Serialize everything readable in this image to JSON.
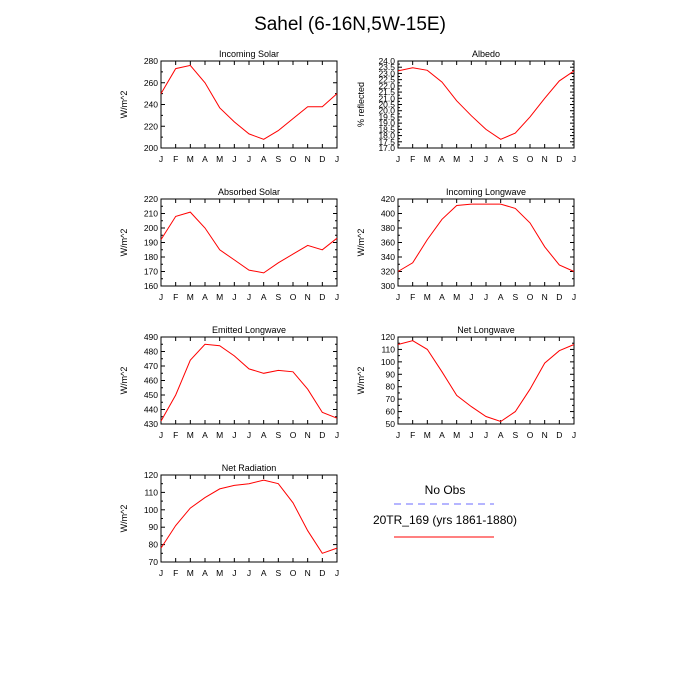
{
  "title": "Sahel (6-16N,5W-15E)",
  "months": [
    "J",
    "F",
    "M",
    "A",
    "M",
    "J",
    "J",
    "A",
    "S",
    "O",
    "N",
    "D",
    "J"
  ],
  "colors": {
    "model": "#ff0000",
    "obs": "#6b6bff",
    "axis": "#000000"
  },
  "legend": {
    "obs_label": "No Obs",
    "model_label": "20TR_169 (yrs 1861-1880)"
  },
  "chart_data": [
    {
      "type": "line",
      "title": "Incoming Solar",
      "ylabel": "W/m^2",
      "ylim": [
        200,
        280
      ],
      "yticks": [
        200,
        220,
        240,
        260,
        280
      ],
      "ytick_labels": [
        "200",
        "220",
        "240",
        "260",
        "280"
      ],
      "series": [
        {
          "name": "20TR_169 (yrs 1861-1880)",
          "values": [
            250,
            273,
            276,
            260,
            237,
            224,
            213,
            208,
            216,
            227,
            238,
            238,
            250
          ]
        }
      ]
    },
    {
      "type": "line",
      "title": "Albedo",
      "ylabel": "% reflected",
      "ylim": [
        17,
        24
      ],
      "yticks": [
        17,
        18,
        19,
        20,
        21,
        22,
        23,
        24
      ],
      "ytick_labels": [
        "17.0",
        "17.5",
        "18.0",
        "18.5",
        "19.0",
        "19.5",
        "20.0",
        "20.5",
        "21.0",
        "21.5",
        "22.0",
        "22.5",
        "23.0",
        "23.5",
        "24.0"
      ],
      "ytick_values": [
        17.0,
        17.5,
        18.0,
        18.5,
        19.0,
        19.5,
        20.0,
        20.5,
        21.0,
        21.5,
        22.0,
        22.5,
        23.0,
        23.5,
        24.0
      ],
      "series": [
        {
          "name": "20TR_169 (yrs 1861-1880)",
          "values": [
            23.2,
            23.45,
            23.25,
            22.3,
            20.8,
            19.6,
            18.5,
            17.7,
            18.2,
            19.5,
            21.0,
            22.4,
            23.2
          ]
        }
      ]
    },
    {
      "type": "line",
      "title": "Absorbed Solar",
      "ylabel": "W/m^2",
      "ylim": [
        160,
        220
      ],
      "ytick_values": [
        160,
        170,
        180,
        190,
        200,
        210,
        220
      ],
      "ytick_labels": [
        "160",
        "170",
        "180",
        "190",
        "200",
        "210",
        "220"
      ],
      "series": [
        {
          "name": "20TR_169 (yrs 1861-1880)",
          "values": [
            192,
            208,
            211,
            200,
            185,
            178,
            171,
            169,
            176,
            182,
            188,
            185,
            193
          ]
        }
      ]
    },
    {
      "type": "line",
      "title": "Incoming Longwave",
      "ylabel": "W/m^2",
      "ylim": [
        300,
        420
      ],
      "ytick_values": [
        300,
        320,
        340,
        360,
        380,
        400,
        420
      ],
      "ytick_labels": [
        "300",
        "320",
        "340",
        "360",
        "380",
        "400",
        "420"
      ],
      "series": [
        {
          "name": "20TR_169 (yrs 1861-1880)",
          "values": [
            320,
            332,
            364,
            392,
            411,
            413,
            413,
            413,
            407,
            387,
            354,
            329,
            320
          ]
        }
      ]
    },
    {
      "type": "line",
      "title": "Emitted Longwave",
      "ylabel": "W/m^2",
      "ylim": [
        430,
        490
      ],
      "ytick_values": [
        430,
        440,
        450,
        460,
        470,
        480,
        490
      ],
      "ytick_labels": [
        "430",
        "440",
        "450",
        "460",
        "470",
        "480",
        "490"
      ],
      "series": [
        {
          "name": "20TR_169 (yrs 1861-1880)",
          "values": [
            432,
            450,
            474,
            485,
            484,
            477,
            468,
            465,
            467,
            466,
            454,
            438,
            434
          ]
        }
      ]
    },
    {
      "type": "line",
      "title": "Net Longwave",
      "ylabel": "W/m^2",
      "ylim": [
        50,
        120
      ],
      "ytick_values": [
        50,
        60,
        70,
        80,
        90,
        100,
        110,
        120
      ],
      "ytick_labels": [
        "50",
        "60",
        "70",
        "80",
        "90",
        "100",
        "110",
        "120"
      ],
      "series": [
        {
          "name": "20TR_169 (yrs 1861-1880)",
          "values": [
            114,
            117,
            110,
            92,
            73,
            64,
            56,
            52,
            60,
            78,
            99,
            109,
            114
          ]
        }
      ]
    },
    {
      "type": "line",
      "title": "Net Radiation",
      "ylabel": "W/m^2",
      "ylim": [
        70,
        120
      ],
      "ytick_values": [
        70,
        80,
        90,
        100,
        110,
        120
      ],
      "ytick_labels": [
        "70",
        "80",
        "90",
        "100",
        "110",
        "120"
      ],
      "series": [
        {
          "name": "20TR_169 (yrs 1861-1880)",
          "values": [
            78,
            91,
            101,
            107,
            112,
            114,
            115,
            117,
            115,
            104,
            88,
            75,
            78
          ]
        }
      ]
    }
  ]
}
